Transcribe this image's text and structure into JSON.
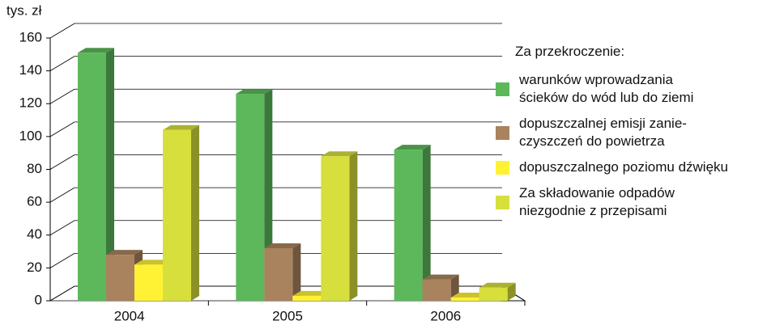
{
  "chart_data": {
    "type": "bar3d",
    "y_label": "tys. zł",
    "legend_title": "Za przekroczenie:",
    "categories": [
      "2004",
      "2005",
      "2006"
    ],
    "series": [
      {
        "name": "warunków wprowadzania\nścieków do wód lub do ziemi",
        "color": "#5cb85a",
        "values": [
          151,
          126,
          92
        ]
      },
      {
        "name": "dopuszczalnej emisji zanie-\nczyszczeń do powietrza",
        "color": "#a9835e",
        "values": [
          28,
          32,
          13
        ]
      },
      {
        "name": "dopuszczalnego poziomu dźwięku",
        "color": "#fff234",
        "values": [
          22,
          3,
          2
        ]
      },
      {
        "name": "Za składowanie odpadów\nniezgodnie z przepisami",
        "color": "#d6df3c",
        "values": [
          104,
          88,
          8
        ]
      }
    ],
    "ylim": [
      0,
      160
    ],
    "yticks": [
      0,
      20,
      40,
      60,
      80,
      100,
      120,
      140,
      160
    ],
    "grid": true,
    "legend": "right"
  }
}
